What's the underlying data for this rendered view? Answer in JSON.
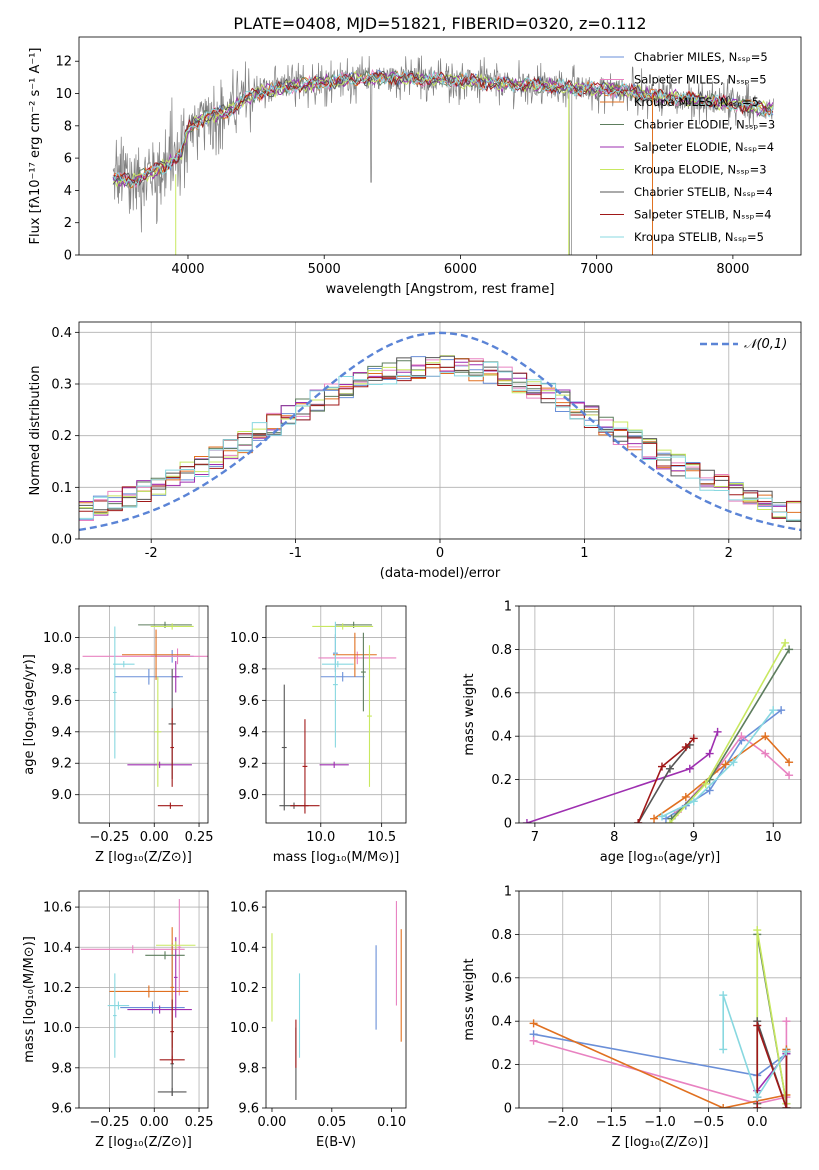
{
  "title": "PLATE=0408, MJD=51821, FIBERID=0320, z=0.112",
  "legend_colors": [
    "#6a8fd8",
    "#e882c1",
    "#e07020",
    "#5d7d5d",
    "#9e2fb0",
    "#c8e860",
    "#555555",
    "#a01818",
    "#88d8e0"
  ],
  "chart_data": [
    {
      "id": "spectrum",
      "type": "line",
      "xlabel": "wavelength [Angstrom, rest frame]",
      "ylabel": "Flux [fλ10⁻¹⁷ erg cm⁻² s⁻¹ A⁻¹]",
      "xlim": [
        3200,
        8500
      ],
      "ylim": [
        0,
        13.5
      ],
      "xticks": [
        4000,
        5000,
        6000,
        7000,
        8000
      ],
      "yticks": [
        0,
        2,
        4,
        6,
        8,
        10,
        12
      ],
      "grid": false,
      "legend_position": "upper-right",
      "series": [
        {
          "name": "Chabrier MILES, Nₛₛₚ=5",
          "color": "#6a8fd8"
        },
        {
          "name": "Salpeter MILES, Nₛₛₚ=5",
          "color": "#e882c1"
        },
        {
          "name": "Kroupa MILES, Nₛₛₚ=5",
          "color": "#e07020"
        },
        {
          "name": "Chabrier ELODIE, Nₛₛₚ=3",
          "color": "#5d7d5d"
        },
        {
          "name": "Salpeter ELODIE, Nₛₛₚ=4",
          "color": "#9e2fb0"
        },
        {
          "name": "Kroupa ELODIE, Nₛₛₚ=3",
          "color": "#c8e860"
        },
        {
          "name": "Chabrier STELIB, Nₛₛₚ=4",
          "color": "#555555"
        },
        {
          "name": "Salpeter STELIB, Nₛₛₚ=4",
          "color": "#a01818"
        },
        {
          "name": "Kroupa STELIB, Nₛₛₚ=5",
          "color": "#88d8e0"
        }
      ],
      "continuum": [
        [
          3450,
          4.7
        ],
        [
          3600,
          4.6
        ],
        [
          3700,
          5.0
        ],
        [
          3850,
          5.6
        ],
        [
          3950,
          6.2
        ],
        [
          4000,
          7.9
        ],
        [
          4150,
          8.6
        ],
        [
          4300,
          8.9
        ],
        [
          4400,
          9.6
        ],
        [
          4500,
          10.0
        ],
        [
          4700,
          10.4
        ],
        [
          4900,
          10.6
        ],
        [
          5100,
          10.8
        ],
        [
          5400,
          11.0
        ],
        [
          5700,
          10.9
        ],
        [
          6000,
          10.8
        ],
        [
          6300,
          10.6
        ],
        [
          6600,
          10.5
        ],
        [
          6900,
          10.3
        ],
        [
          7200,
          10.2
        ],
        [
          7500,
          9.8
        ],
        [
          7800,
          9.6
        ],
        [
          8100,
          9.2
        ],
        [
          8300,
          9.0
        ]
      ]
    },
    {
      "id": "residuals",
      "type": "line",
      "xlabel": "(data-model)/error",
      "ylabel": "Normed distribution",
      "xlim": [
        -2.5,
        2.5
      ],
      "ylim": [
        0,
        0.42
      ],
      "xticks": [
        -2,
        -1,
        0,
        1,
        2
      ],
      "yticks": [
        0.0,
        0.1,
        0.2,
        0.3,
        0.4
      ],
      "grid": true,
      "legend_position": "upper-right",
      "gaussian_label": "𝒩(0,1)",
      "gaussian": {
        "mu": 0,
        "sigma": 1,
        "color": "#5b84d6"
      },
      "bin_width": 0.1
    },
    {
      "id": "age-vs-Z",
      "type": "scatter",
      "xlabel": "Z [log₁₀(Z/Z⊙)]",
      "ylabel": "age  [log₁₀(age/yr)]",
      "xlim": [
        -0.42,
        0.3
      ],
      "ylim": [
        8.82,
        10.2
      ],
      "xticks": [
        -0.25,
        0.0,
        0.25
      ],
      "xticklabels": [
        "−0.25",
        "0.00",
        "0.25"
      ],
      "yticks": [
        9.0,
        9.2,
        9.4,
        9.6,
        9.8,
        10.0
      ],
      "grid": true,
      "points": [
        {
          "x": 0.1,
          "y": 9.88,
          "xerr": 0.12,
          "yerr": 0.04,
          "color": "#6a8fd8"
        },
        {
          "x": -0.03,
          "y": 9.75,
          "xerr": 0.19,
          "yerr": 0.05,
          "color": "#6a8fd8"
        },
        {
          "x": 0.13,
          "y": 9.88,
          "xerr": 0.53,
          "yerr": 0.05,
          "color": "#e882c1"
        },
        {
          "x": 0.01,
          "y": 9.89,
          "xerr": 0.19,
          "yerr": 0.16,
          "color": "#e07020"
        },
        {
          "x": 0.06,
          "y": 10.08,
          "xerr": 0.15,
          "yerr": 0.02,
          "color": "#5d7d5d"
        },
        {
          "x": 0.12,
          "y": 9.75,
          "xerr": 0.02,
          "yerr": 0.1,
          "color": "#9e2fb0"
        },
        {
          "x": 0.03,
          "y": 9.19,
          "xerr": 0.18,
          "yerr": 0.02,
          "color": "#9e2fb0"
        },
        {
          "x": 0.02,
          "y": 9.4,
          "xerr": 0.02,
          "yerr": 0.35,
          "color": "#c8e860"
        },
        {
          "x": 0.1,
          "y": 10.07,
          "xerr": 0.12,
          "yerr": 0.02,
          "color": "#c8e860"
        },
        {
          "x": 0.1,
          "y": 9.45,
          "xerr": 0.02,
          "yerr": 0.35,
          "color": "#555555"
        },
        {
          "x": 0.09,
          "y": 8.93,
          "xerr": 0.07,
          "yerr": 0.02,
          "color": "#a01818"
        },
        {
          "x": 0.1,
          "y": 9.3,
          "xerr": 0.01,
          "yerr": 0.25,
          "color": "#a01818"
        },
        {
          "x": -0.17,
          "y": 9.83,
          "xerr": 0.06,
          "yerr": 0.02,
          "color": "#88d8e0"
        },
        {
          "x": -0.22,
          "y": 9.65,
          "xerr": 0.01,
          "yerr": 0.42,
          "color": "#88d8e0"
        }
      ]
    },
    {
      "id": "age-vs-mass",
      "type": "scatter",
      "xlabel": "mass [log₁₀(M/M⊙)]",
      "ylabel": "",
      "xlim": [
        9.55,
        10.7
      ],
      "ylim": [
        8.82,
        10.2
      ],
      "xticks": [
        10.0,
        10.5
      ],
      "xticklabels": [
        "10.0",
        "10.5"
      ],
      "yticks": [
        9.0,
        9.2,
        9.4,
        9.6,
        9.8,
        10.0
      ],
      "grid": true,
      "points": [
        {
          "x": 10.18,
          "y": 9.75,
          "xerr": 0.18,
          "yerr": 0.03,
          "color": "#6a8fd8"
        },
        {
          "x": 10.12,
          "y": 9.9,
          "xerr": 0.02,
          "yerr": 0.12,
          "color": "#6a8fd8"
        },
        {
          "x": 10.3,
          "y": 9.87,
          "xerr": 0.32,
          "yerr": 0.04,
          "color": "#e882c1"
        },
        {
          "x": 10.28,
          "y": 9.89,
          "xerr": 0.18,
          "yerr": 0.14,
          "color": "#e07020"
        },
        {
          "x": 10.27,
          "y": 10.08,
          "xerr": 0.15,
          "yerr": 0.02,
          "color": "#5d7d5d"
        },
        {
          "x": 10.35,
          "y": 9.78,
          "xerr": 0.02,
          "yerr": 0.25,
          "color": "#5d7d5d"
        },
        {
          "x": 10.11,
          "y": 9.19,
          "xerr": 0.12,
          "yerr": 0.02,
          "color": "#9e2fb0"
        },
        {
          "x": 10.18,
          "y": 10.07,
          "xerr": 0.25,
          "yerr": 0.02,
          "color": "#c8e860"
        },
        {
          "x": 10.4,
          "y": 9.5,
          "xerr": 0.02,
          "yerr": 0.45,
          "color": "#c8e860"
        },
        {
          "x": 9.78,
          "y": 8.93,
          "xerr": 0.12,
          "yerr": 0.02,
          "color": "#555555"
        },
        {
          "x": 9.7,
          "y": 9.3,
          "xerr": 0.02,
          "yerr": 0.4,
          "color": "#555555"
        },
        {
          "x": 9.87,
          "y": 8.93,
          "xerr": 0.12,
          "yerr": 0.02,
          "color": "#a01818"
        },
        {
          "x": 9.87,
          "y": 9.18,
          "xerr": 0.02,
          "yerr": 0.3,
          "color": "#a01818"
        },
        {
          "x": 10.14,
          "y": 9.83,
          "xerr": 0.13,
          "yerr": 0.02,
          "color": "#88d8e0"
        },
        {
          "x": 10.12,
          "y": 9.7,
          "xerr": 0.02,
          "yerr": 0.4,
          "color": "#88d8e0"
        }
      ]
    },
    {
      "id": "weight-vs-age",
      "type": "line",
      "xlabel": "age  [log₁₀(age/yr)]",
      "ylabel": "mass weight",
      "xlim": [
        6.8,
        10.35
      ],
      "ylim": [
        0,
        1.0
      ],
      "xticks": [
        7,
        8,
        9,
        10
      ],
      "yticks": [
        0.0,
        0.2,
        0.4,
        0.6,
        0.8,
        1.0
      ],
      "grid": true,
      "series": [
        {
          "color": "#6a8fd8",
          "x": [
            8.65,
            8.9,
            9.2,
            9.6,
            10.1
          ],
          "y": [
            0.02,
            0.08,
            0.15,
            0.38,
            0.52
          ]
        },
        {
          "color": "#e882c1",
          "x": [
            8.8,
            9.3,
            9.6,
            9.9,
            10.2
          ],
          "y": [
            0.05,
            0.25,
            0.4,
            0.32,
            0.22
          ]
        },
        {
          "color": "#e07020",
          "x": [
            8.5,
            8.9,
            9.4,
            9.9,
            10.2
          ],
          "y": [
            0.02,
            0.12,
            0.27,
            0.4,
            0.28
          ]
        },
        {
          "color": "#5d7d5d",
          "x": [
            8.72,
            9.2,
            10.2
          ],
          "y": [
            0.02,
            0.2,
            0.8
          ]
        },
        {
          "color": "#9e2fb0",
          "x": [
            6.9,
            8.95,
            9.2,
            9.3
          ],
          "y": [
            0.0,
            0.25,
            0.32,
            0.42
          ]
        },
        {
          "color": "#c8e860",
          "x": [
            8.7,
            9.15,
            10.15
          ],
          "y": [
            0.0,
            0.18,
            0.83
          ]
        },
        {
          "color": "#555555",
          "x": [
            8.3,
            8.7,
            8.95
          ],
          "y": [
            0.0,
            0.25,
            0.36
          ]
        },
        {
          "color": "#a01818",
          "x": [
            8.3,
            8.6,
            8.9,
            9.0
          ],
          "y": [
            0.0,
            0.26,
            0.35,
            0.39
          ]
        },
        {
          "color": "#88d8e0",
          "x": [
            8.6,
            9.0,
            9.5,
            10.0
          ],
          "y": [
            0.03,
            0.1,
            0.28,
            0.52
          ]
        }
      ]
    },
    {
      "id": "mass-vs-Z",
      "type": "scatter",
      "xlabel": "Z [log₁₀(Z/Z⊙)]",
      "ylabel": "mass [log₁₀(M/M⊙)]",
      "xlim": [
        -0.42,
        0.3
      ],
      "ylim": [
        9.6,
        10.68
      ],
      "xticks": [
        -0.25,
        0.0,
        0.25
      ],
      "xticklabels": [
        "−0.25",
        "0.00",
        "0.25"
      ],
      "yticks": [
        9.6,
        9.8,
        10.0,
        10.2,
        10.4,
        10.6
      ],
      "grid": true,
      "points": [
        {
          "x": -0.01,
          "y": 10.1,
          "xerr": 0.18,
          "yerr": 0.03,
          "color": "#6a8fd8"
        },
        {
          "x": 0.1,
          "y": 10.2,
          "xerr": 0.01,
          "yerr": 0.22,
          "color": "#6a8fd8"
        },
        {
          "x": -0.12,
          "y": 10.39,
          "xerr": 0.29,
          "yerr": 0.02,
          "color": "#e882c1"
        },
        {
          "x": 0.14,
          "y": 10.4,
          "xerr": 0.01,
          "yerr": 0.24,
          "color": "#e882c1"
        },
        {
          "x": -0.03,
          "y": 10.18,
          "xerr": 0.22,
          "yerr": 0.03,
          "color": "#e07020"
        },
        {
          "x": 0.1,
          "y": 10.2,
          "xerr": 0.01,
          "yerr": 0.3,
          "color": "#e07020"
        },
        {
          "x": 0.06,
          "y": 10.36,
          "xerr": 0.11,
          "yerr": 0.02,
          "color": "#5d7d5d"
        },
        {
          "x": 0.03,
          "y": 10.09,
          "xerr": 0.18,
          "yerr": 0.02,
          "color": "#9e2fb0"
        },
        {
          "x": 0.12,
          "y": 10.25,
          "xerr": 0.01,
          "yerr": 0.2,
          "color": "#9e2fb0"
        },
        {
          "x": 0.12,
          "y": 10.41,
          "xerr": 0.11,
          "yerr": 0.02,
          "color": "#c8e860"
        },
        {
          "x": 0.1,
          "y": 9.68,
          "xerr": 0.08,
          "yerr": 0.02,
          "color": "#555555"
        },
        {
          "x": 0.1,
          "y": 9.82,
          "xerr": 0.01,
          "yerr": 0.16,
          "color": "#555555"
        },
        {
          "x": 0.1,
          "y": 9.84,
          "xerr": 0.07,
          "yerr": 0.02,
          "color": "#a01818"
        },
        {
          "x": 0.1,
          "y": 9.98,
          "xerr": 0.01,
          "yerr": 0.16,
          "color": "#a01818"
        },
        {
          "x": -0.2,
          "y": 10.11,
          "xerr": 0.06,
          "yerr": 0.02,
          "color": "#88d8e0"
        },
        {
          "x": -0.22,
          "y": 10.06,
          "xerr": 0.01,
          "yerr": 0.21,
          "color": "#88d8e0"
        }
      ]
    },
    {
      "id": "mass-vs-ebv",
      "type": "scatter",
      "xlabel": "E(B-V)",
      "ylabel": "",
      "xlim": [
        -0.005,
        0.112
      ],
      "ylim": [
        9.6,
        10.68
      ],
      "xticks": [
        0.0,
        0.05,
        0.1
      ],
      "xticklabels": [
        "0.00",
        "0.05",
        "0.10"
      ],
      "yticks": [
        9.6,
        9.8,
        10.0,
        10.2,
        10.4,
        10.6
      ],
      "grid": false,
      "points": [
        {
          "x": 0.087,
          "y": 10.2,
          "xerr": 0,
          "yerr": 0.21,
          "color": "#6a8fd8"
        },
        {
          "x": 0.104,
          "y": 10.37,
          "xerr": 0,
          "yerr": 0.26,
          "color": "#e882c1"
        },
        {
          "x": 0.108,
          "y": 10.21,
          "xerr": 0,
          "yerr": 0.28,
          "color": "#e07020"
        },
        {
          "x": 0.0,
          "y": 10.25,
          "xerr": 0,
          "yerr": 0.22,
          "color": "#c8e860"
        },
        {
          "x": 0.02,
          "y": 9.82,
          "xerr": 0,
          "yerr": 0.18,
          "color": "#555555"
        },
        {
          "x": 0.02,
          "y": 9.92,
          "xerr": 0,
          "yerr": 0.12,
          "color": "#a01818"
        },
        {
          "x": 0.023,
          "y": 10.06,
          "xerr": 0,
          "yerr": 0.21,
          "color": "#88d8e0"
        }
      ]
    },
    {
      "id": "weight-vs-Z",
      "type": "line",
      "xlabel": "Z [log₁₀(Z/Z⊙)]",
      "ylabel": "mass weight",
      "xlim": [
        -2.45,
        0.45
      ],
      "ylim": [
        0,
        1.0
      ],
      "xticks": [
        -2.0,
        -1.5,
        -1.0,
        -0.5,
        0.0
      ],
      "xticklabels": [
        "−2.0",
        "−1.5",
        "−1.0",
        "−0.5",
        "0.0"
      ],
      "yticks": [
        0.0,
        0.2,
        0.4,
        0.6,
        0.8,
        1.0
      ],
      "grid": true,
      "series": [
        {
          "color": "#6a8fd8",
          "x": [
            -2.3,
            0.0,
            0.3
          ],
          "y": [
            0.34,
            0.15,
            0.25
          ]
        },
        {
          "color": "#e882c1",
          "x": [
            -2.3,
            0.0,
            0.3,
            0.3
          ],
          "y": [
            0.31,
            0.02,
            0.05,
            0.4
          ]
        },
        {
          "color": "#e07020",
          "x": [
            -2.3,
            -0.35,
            0.3,
            0.3
          ],
          "y": [
            0.39,
            0.0,
            0.06,
            0.27
          ]
        },
        {
          "color": "#5d7d5d",
          "x": [
            0.0,
            0.0,
            0.3
          ],
          "y": [
            0.02,
            0.8,
            0.02
          ]
        },
        {
          "color": "#9e2fb0",
          "x": [
            0.0,
            0.0,
            0.3
          ],
          "y": [
            0.0,
            0.08,
            0.25
          ]
        },
        {
          "color": "#c8e860",
          "x": [
            0.0,
            0.0,
            0.3
          ],
          "y": [
            0.0,
            0.82,
            0.02
          ]
        },
        {
          "color": "#555555",
          "x": [
            0.0,
            0.0,
            0.3,
            0.3
          ],
          "y": [
            0.05,
            0.4,
            0.0,
            0.26
          ]
        },
        {
          "color": "#a01818",
          "x": [
            0.0,
            0.0,
            0.3,
            0.3
          ],
          "y": [
            0.0,
            0.38,
            0.0,
            0.26
          ]
        },
        {
          "color": "#88d8e0",
          "x": [
            -0.35,
            -0.35,
            0.0,
            0.3
          ],
          "y": [
            0.27,
            0.52,
            0.05,
            0.26
          ]
        }
      ]
    }
  ]
}
